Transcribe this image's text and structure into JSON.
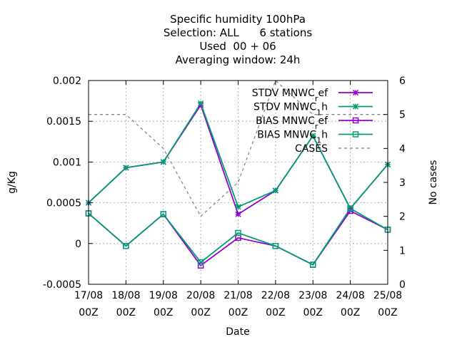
{
  "chart_data": {
    "type": "line",
    "title_lines": [
      "Specific humidity 100hPa",
      "Selection: ALL      6 stations",
      "Used  00 + 06",
      "Averaging window: 24h"
    ],
    "xlabel": "Date",
    "ylabel": "g/Kg",
    "y2label": "No cases",
    "categories": [
      [
        "17/08",
        "00Z"
      ],
      [
        "18/08",
        "00Z"
      ],
      [
        "19/08",
        "00Z"
      ],
      [
        "20/08",
        "00Z"
      ],
      [
        "21/08",
        "00Z"
      ],
      [
        "22/08",
        "00Z"
      ],
      [
        "23/08",
        "00Z"
      ],
      [
        "24/08",
        "00Z"
      ],
      [
        "25/08",
        "00Z"
      ]
    ],
    "ylim": [
      -0.0005,
      0.002
    ],
    "y_ticks": [
      "-0.0005",
      "0",
      "0.0005",
      "0.001",
      "0.0015",
      "0.002"
    ],
    "y2lim": [
      0,
      6
    ],
    "y2_ticks": [
      "0",
      "1",
      "2",
      "3",
      "4",
      "5",
      "6"
    ],
    "grid": true,
    "legend_position": "top-right",
    "series": [
      {
        "name": "STDV MNWC_ref",
        "legend": {
          "base": "STDV MNWC",
          "sub": "r",
          "rest": "ef"
        },
        "color": "#9400d3",
        "marker": "star",
        "axis": "y",
        "values": [
          0.0005,
          0.00093,
          0.001,
          0.0017,
          0.00036,
          0.00065,
          0.00132,
          0.00043,
          0.00097
        ]
      },
      {
        "name": "STDV MNWC_1h",
        "legend": {
          "base": "STDV MNWC",
          "sub": "1",
          "rest": "h"
        },
        "color": "#009e73",
        "marker": "star",
        "axis": "y",
        "values": [
          0.0005,
          0.00093,
          0.001,
          0.00172,
          0.00045,
          0.00065,
          0.00132,
          0.00043,
          0.00097
        ]
      },
      {
        "name": "BIAS MNWC_ref",
        "legend": {
          "base": "BIAS MNWC",
          "sub": "r",
          "rest": "ef"
        },
        "color": "#9400d3",
        "marker": "square",
        "axis": "y",
        "values": [
          0.00037,
          -3e-05,
          0.00036,
          -0.00027,
          7e-05,
          -3e-05,
          -0.00026,
          0.0004,
          0.00017
        ]
      },
      {
        "name": "BIAS MNWC_1h",
        "legend": {
          "base": "BIAS MNWC",
          "sub": "1",
          "rest": "h"
        },
        "color": "#009e73",
        "marker": "square",
        "axis": "y",
        "values": [
          0.00037,
          -3e-05,
          0.00036,
          -0.00023,
          0.00013,
          -3e-05,
          -0.00026,
          0.00043,
          0.00017
        ]
      },
      {
        "name": "CASES",
        "legend": {
          "base": "CASES",
          "sub": "",
          "rest": ""
        },
        "color": "#888888",
        "marker": "none",
        "dashed": true,
        "axis": "y2",
        "values": [
          5,
          5,
          4,
          2,
          3,
          6,
          5,
          5,
          5
        ]
      }
    ]
  }
}
